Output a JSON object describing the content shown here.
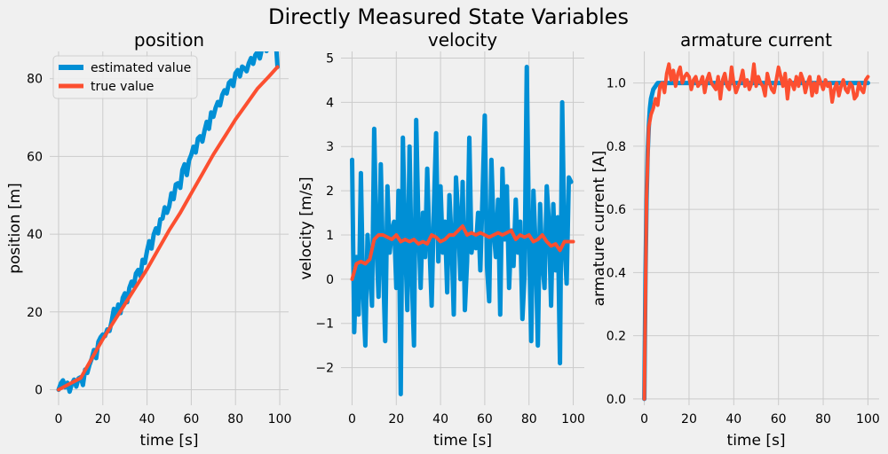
{
  "suptitle": "Directly Measured State Variables",
  "colors": {
    "estimated": "#008fd5",
    "true": "#fc4f30",
    "background": "#f0f0f0",
    "grid": "#cbcbcb"
  },
  "legend": {
    "placement": "upper-left",
    "labels": [
      "estimated value",
      "true value"
    ]
  },
  "chart_data": [
    {
      "type": "line",
      "title": "position",
      "xlabel": "time [s]",
      "ylabel": "position [m]",
      "xlim": [
        -4,
        104
      ],
      "ylim": [
        -4,
        87
      ],
      "xticks": [
        0,
        20,
        40,
        60,
        80,
        100
      ],
      "yticks": [
        0,
        20,
        40,
        60,
        80
      ],
      "ytick_labels": [
        "0",
        "20",
        "40",
        "60",
        "80"
      ],
      "grid": true,
      "legend": true,
      "series": [
        {
          "name": "estimated value",
          "x": [
            0,
            1,
            2,
            3,
            4,
            5,
            6,
            7,
            8,
            9,
            10,
            11,
            12,
            13,
            14,
            15,
            16,
            17,
            18,
            19,
            20,
            21,
            22,
            23,
            24,
            25,
            26,
            27,
            28,
            29,
            30,
            31,
            32,
            33,
            34,
            35,
            36,
            37,
            38,
            39,
            40,
            41,
            42,
            43,
            44,
            45,
            46,
            47,
            48,
            49,
            50,
            51,
            52,
            53,
            54,
            55,
            56,
            57,
            58,
            59,
            60,
            61,
            62,
            63,
            64,
            65,
            66,
            67,
            68,
            69,
            70,
            71,
            72,
            73,
            74,
            75,
            76,
            77,
            78,
            79,
            80,
            81,
            82,
            83,
            84,
            85,
            86,
            87,
            88,
            89,
            90,
            91,
            92,
            93,
            94,
            95,
            96,
            97,
            98,
            99
          ],
          "values": [
            0.0,
            1.6,
            2.4,
            0.6,
            1.8,
            -0.5,
            1.5,
            2.6,
            0.8,
            2.9,
            3.2,
            1.2,
            5.2,
            4.3,
            6.4,
            8.0,
            10.2,
            8.1,
            12.3,
            13.5,
            14.2,
            13.8,
            15.5,
            15.1,
            17.5,
            20.8,
            18.9,
            21.9,
            19.7,
            23.6,
            24.8,
            22.5,
            26.2,
            27.8,
            26.6,
            29.9,
            30.8,
            29.2,
            33.4,
            32.6,
            35.7,
            38.2,
            36.3,
            39.9,
            41.5,
            40.2,
            43.8,
            44.0,
            46.9,
            45.5,
            47.1,
            50.5,
            49.0,
            52.8,
            53.1,
            51.9,
            56.5,
            58.0,
            55.2,
            59.0,
            60.4,
            62.5,
            61.0,
            64.6,
            65.2,
            63.8,
            66.7,
            68.9,
            67.1,
            71.3,
            70.2,
            72.5,
            74.0,
            73.1,
            75.8,
            77.0,
            76.2,
            78.9,
            79.5,
            78.1,
            81.4,
            82.2,
            80.6,
            83.1,
            82.7,
            81.9,
            84.0,
            85.3,
            83.8,
            86.1,
            86.9,
            85.2,
            87.8,
            88.5,
            87.1,
            89.0,
            88.3,
            90.1,
            91.4,
            83.0
          ]
        },
        {
          "name": "true value",
          "x": [
            0,
            5,
            10,
            15,
            20,
            25,
            30,
            35,
            40,
            45,
            50,
            55,
            60,
            65,
            70,
            75,
            80,
            85,
            90,
            95,
            99
          ],
          "values": [
            0.0,
            1.5,
            3.0,
            8.0,
            13.0,
            17.5,
            22.0,
            26.5,
            31.0,
            36.0,
            41.0,
            45.5,
            50.5,
            55.5,
            60.5,
            65.0,
            69.5,
            73.5,
            77.5,
            80.5,
            83.0
          ]
        }
      ]
    },
    {
      "type": "line",
      "title": "velocity",
      "xlabel": "time [s]",
      "ylabel": "velocity [m/s]",
      "xlim": [
        -5,
        105
      ],
      "ylim": [
        -2.85,
        5.15
      ],
      "xticks": [
        0,
        20,
        40,
        60,
        80,
        100
      ],
      "yticks": [
        -2,
        -1,
        0,
        1,
        2,
        3,
        4,
        5
      ],
      "ytick_labels": [
        "−2",
        "−1",
        "0",
        "1",
        "2",
        "3",
        "4",
        "5"
      ],
      "grid": true,
      "legend": false,
      "series": [
        {
          "name": "estimated value",
          "x": [
            0,
            1,
            2,
            3,
            4,
            5,
            6,
            7,
            8,
            9,
            10,
            11,
            12,
            13,
            14,
            15,
            16,
            17,
            18,
            19,
            20,
            21,
            22,
            23,
            24,
            25,
            26,
            27,
            28,
            29,
            30,
            31,
            32,
            33,
            34,
            35,
            36,
            37,
            38,
            39,
            40,
            41,
            42,
            43,
            44,
            45,
            46,
            47,
            48,
            49,
            50,
            51,
            52,
            53,
            54,
            55,
            56,
            57,
            58,
            59,
            60,
            61,
            62,
            63,
            64,
            65,
            66,
            67,
            68,
            69,
            70,
            71,
            72,
            73,
            74,
            75,
            76,
            77,
            78,
            79,
            80,
            81,
            82,
            83,
            84,
            85,
            86,
            87,
            88,
            89,
            90,
            91,
            92,
            93,
            94,
            95,
            96,
            97,
            98,
            99
          ],
          "values": [
            2.7,
            -1.2,
            0.5,
            -0.8,
            2.4,
            -0.3,
            -1.5,
            1.0,
            0.2,
            -0.6,
            3.4,
            0.8,
            -0.4,
            2.6,
            0.4,
            -1.4,
            2.1,
            0.6,
            1.1,
            1.3,
            -0.2,
            2.0,
            -2.6,
            3.2,
            0.9,
            -0.7,
            3.0,
            0.1,
            -1.5,
            3.6,
            1.2,
            -0.2,
            1.5,
            0.5,
            2.5,
            0.8,
            -0.6,
            1.6,
            3.3,
            0.4,
            2.1,
            0.6,
            1.3,
            -0.3,
            1.9,
            0.9,
            -0.8,
            2.3,
            1.4,
            0.0,
            2.2,
            -0.7,
            0.4,
            3.2,
            0.6,
            1.0,
            0.7,
            1.5,
            0.2,
            1.9,
            3.7,
            0.3,
            -0.5,
            2.7,
            1.1,
            0.5,
            1.8,
            -0.8,
            2.5,
            0.9,
            2.1,
            -0.2,
            1.1,
            0.3,
            1.8,
            0.6,
            1.3,
            -0.9,
            0.1,
            4.8,
            1.0,
            -1.4,
            2.0,
            0.7,
            -1.5,
            1.7,
            0.4,
            -0.2,
            2.1,
            1.3,
            -0.6,
            1.7,
            0.2,
            1.4,
            -1.9,
            4.0,
            0.8,
            -0.1,
            2.3,
            2.2
          ]
        },
        {
          "name": "true value",
          "x": [
            0,
            2,
            4,
            6,
            8,
            10,
            12,
            14,
            16,
            18,
            20,
            22,
            24,
            26,
            28,
            30,
            32,
            34,
            36,
            38,
            40,
            42,
            44,
            46,
            48,
            50,
            52,
            54,
            56,
            58,
            60,
            62,
            64,
            66,
            68,
            70,
            72,
            74,
            76,
            78,
            80,
            82,
            84,
            86,
            88,
            90,
            92,
            94,
            96,
            98,
            100
          ],
          "values": [
            0.0,
            0.35,
            0.4,
            0.35,
            0.45,
            0.9,
            1.0,
            1.0,
            0.95,
            0.9,
            1.0,
            0.85,
            0.9,
            0.85,
            0.9,
            0.8,
            0.85,
            0.8,
            1.0,
            0.95,
            0.85,
            0.9,
            1.0,
            1.0,
            1.1,
            1.2,
            1.0,
            1.05,
            1.0,
            1.05,
            1.0,
            0.95,
            1.0,
            1.05,
            1.0,
            1.05,
            1.1,
            0.9,
            1.0,
            0.95,
            1.0,
            0.85,
            0.9,
            1.0,
            0.85,
            0.75,
            0.8,
            0.65,
            0.85,
            0.85,
            0.85
          ]
        }
      ]
    },
    {
      "type": "line",
      "title": "armature current",
      "xlabel": "time [s]",
      "ylabel": "armature current [A]",
      "xlim": [
        -5,
        105
      ],
      "ylim": [
        -0.02,
        1.1
      ],
      "xticks": [
        0,
        20,
        40,
        60,
        80,
        100
      ],
      "yticks": [
        0.0,
        0.2,
        0.4,
        0.6,
        0.8,
        1.0
      ],
      "ytick_labels": [
        "0.0",
        "0.2",
        "0.4",
        "0.6",
        "0.8",
        "1.0"
      ],
      "grid": true,
      "legend": false,
      "series": [
        {
          "name": "estimated value",
          "x": [
            0,
            0.5,
            1,
            1.5,
            2,
            2.5,
            3,
            4,
            5,
            6,
            7,
            8,
            10,
            20,
            40,
            60,
            80,
            100
          ],
          "values": [
            0.0,
            0.39,
            0.63,
            0.78,
            0.86,
            0.92,
            0.95,
            0.98,
            0.99,
            1.0,
            1.0,
            1.0,
            1.0,
            1.0,
            1.0,
            1.0,
            1.0,
            1.0
          ]
        },
        {
          "name": "true value",
          "x": [
            0,
            1,
            2,
            3,
            4,
            5,
            6,
            7,
            8,
            9,
            10,
            11,
            12,
            13,
            14,
            15,
            16,
            17,
            18,
            19,
            20,
            21,
            22,
            23,
            24,
            25,
            26,
            27,
            28,
            29,
            30,
            31,
            32,
            33,
            34,
            35,
            36,
            37,
            38,
            39,
            40,
            41,
            42,
            43,
            44,
            45,
            46,
            47,
            48,
            49,
            50,
            51,
            52,
            53,
            54,
            55,
            56,
            57,
            58,
            59,
            60,
            61,
            62,
            63,
            64,
            65,
            66,
            67,
            68,
            69,
            70,
            71,
            72,
            73,
            74,
            75,
            76,
            77,
            78,
            79,
            80,
            81,
            82,
            83,
            84,
            85,
            86,
            87,
            88,
            89,
            90,
            91,
            92,
            93,
            94,
            95,
            96,
            97,
            98,
            99,
            100
          ],
          "values": [
            0.0,
            0.64,
            0.86,
            0.9,
            0.92,
            0.95,
            0.93,
            0.99,
            1.0,
            0.97,
            1.03,
            1.06,
            1.01,
            1.04,
            0.99,
            1.03,
            1.05,
            1.0,
            1.02,
            1.03,
            1.02,
            0.98,
            1.01,
            1.02,
            0.99,
            1.0,
            1.02,
            0.97,
            1.01,
            1.03,
            1.0,
            0.99,
            0.98,
            1.02,
            0.95,
            1.01,
            1.03,
            0.99,
            0.98,
            1.05,
            1.0,
            0.97,
            0.99,
            1.01,
            1.04,
            0.99,
            1.01,
            0.98,
            1.0,
            1.06,
            0.99,
            1.02,
            1.0,
            0.99,
            0.96,
            1.03,
            1.0,
            0.98,
            0.97,
            1.01,
            1.05,
            1.02,
            0.99,
            1.03,
            0.95,
            1.01,
            1.0,
            0.98,
            1.02,
            0.99,
            1.03,
            1.01,
            0.97,
            1.0,
            1.02,
            0.96,
            1.0,
            0.97,
            1.02,
            1.0,
            0.98,
            1.01,
            0.99,
            1.0,
            0.94,
            0.98,
            1.0,
            0.96,
            0.99,
            1.01,
            0.98,
            0.97,
            1.0,
            0.99,
            0.95,
            0.96,
            1.0,
            0.98,
            0.97,
            1.01,
            1.02
          ]
        }
      ]
    }
  ]
}
